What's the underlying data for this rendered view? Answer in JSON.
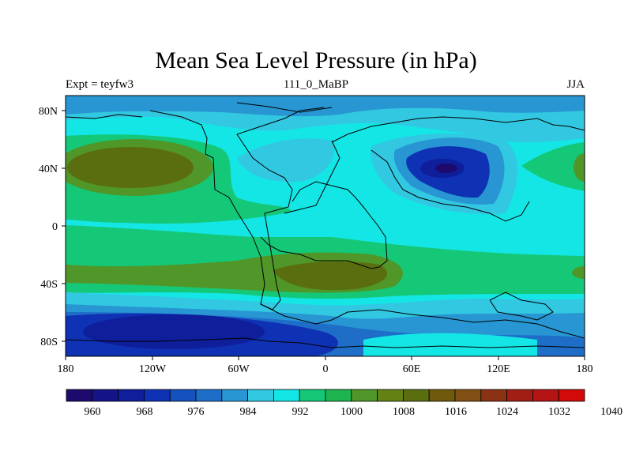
{
  "title": "Mean Sea Level Pressure (in hPa)",
  "left_label": "Expt = teyfw3",
  "center_label": "111_0_MaBP",
  "right_label": "JJA",
  "lat_labels": [
    "80N",
    "40N",
    "0",
    "40S",
    "80S"
  ],
  "lon_labels": [
    "180",
    "120W",
    "60W",
    "0",
    "60E",
    "120E",
    "180"
  ],
  "colorbar_labels": [
    "960",
    "968",
    "976",
    "984",
    "992",
    "1000",
    "1008",
    "1016",
    "1024",
    "1032",
    "1040"
  ],
  "colorbar_colors": [
    "#1e0a6e",
    "#141487",
    "#0f1e9b",
    "#0f32b4",
    "#1450be",
    "#1e6ec8",
    "#2896d2",
    "#32c8e1",
    "#14e6e6",
    "#14c878",
    "#1eb450",
    "#509628",
    "#648214",
    "#5a6e0f",
    "#6e5a0a",
    "#825014",
    "#8c3214",
    "#a01e14",
    "#b41414",
    "#d20a0a"
  ],
  "colors": {
    "deep_blue": "#0f1e9b",
    "dark_blue": "#0f32b4",
    "mid_blue": "#1e6ec8",
    "light_blue": "#2896d2",
    "sky": "#32c8e1",
    "cyan": "#14e6e6",
    "green": "#14c878",
    "green2": "#1eb450",
    "olive": "#509628",
    "brown": "#5a6e0f"
  }
}
